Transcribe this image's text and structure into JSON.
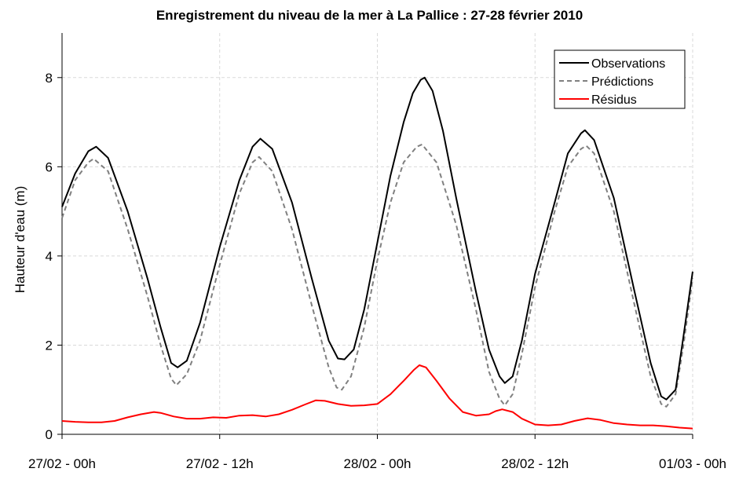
{
  "chart_data": {
    "type": "line",
    "title": "Enregistrement du niveau de la mer à La Pallice : 27-28 février 2010",
    "xlabel": "",
    "ylabel": "Hauteur d'eau (m)",
    "x_unit": "hours since 27/02 00h",
    "xlim": [
      0,
      48
    ],
    "ylim": [
      0,
      9
    ],
    "x_ticks": [
      {
        "value": 0,
        "label": "27/02 - 00h"
      },
      {
        "value": 12,
        "label": "27/02 - 12h"
      },
      {
        "value": 24,
        "label": "28/02 - 00h"
      },
      {
        "value": 36,
        "label": "28/02 - 12h"
      },
      {
        "value": 48,
        "label": "01/03 - 00h"
      }
    ],
    "y_ticks": [
      0,
      2,
      4,
      6,
      8
    ],
    "grid": true,
    "legend_position": "top-right",
    "series": [
      {
        "name": "Observations",
        "color": "#000000",
        "style": "solid",
        "points": [
          [
            0,
            5.1
          ],
          [
            1,
            5.85
          ],
          [
            2,
            6.35
          ],
          [
            2.6,
            6.45
          ],
          [
            3.5,
            6.2
          ],
          [
            5,
            5.0
          ],
          [
            6.5,
            3.5
          ],
          [
            7.5,
            2.4
          ],
          [
            8.3,
            1.6
          ],
          [
            8.8,
            1.5
          ],
          [
            9.5,
            1.65
          ],
          [
            10.5,
            2.5
          ],
          [
            12,
            4.2
          ],
          [
            13.5,
            5.7
          ],
          [
            14.5,
            6.45
          ],
          [
            15.1,
            6.63
          ],
          [
            16,
            6.4
          ],
          [
            17.5,
            5.2
          ],
          [
            19,
            3.5
          ],
          [
            20.3,
            2.1
          ],
          [
            21,
            1.7
          ],
          [
            21.5,
            1.68
          ],
          [
            22.2,
            1.9
          ],
          [
            23,
            2.8
          ],
          [
            24,
            4.3
          ],
          [
            25,
            5.8
          ],
          [
            26,
            7.0
          ],
          [
            26.7,
            7.65
          ],
          [
            27.3,
            7.95
          ],
          [
            27.6,
            8.0
          ],
          [
            28.2,
            7.7
          ],
          [
            29,
            6.8
          ],
          [
            30,
            5.3
          ],
          [
            31.5,
            3.2
          ],
          [
            32.5,
            1.9
          ],
          [
            33.3,
            1.3
          ],
          [
            33.7,
            1.15
          ],
          [
            34.3,
            1.3
          ],
          [
            35,
            2.1
          ],
          [
            36,
            3.6
          ],
          [
            37.5,
            5.2
          ],
          [
            38.5,
            6.3
          ],
          [
            39.5,
            6.75
          ],
          [
            39.8,
            6.82
          ],
          [
            40.5,
            6.6
          ],
          [
            42,
            5.3
          ],
          [
            43.5,
            3.3
          ],
          [
            44.8,
            1.6
          ],
          [
            45.6,
            0.85
          ],
          [
            46,
            0.78
          ],
          [
            46.7,
            1.0
          ],
          [
            47.3,
            2.2
          ],
          [
            48,
            3.65
          ]
        ]
      },
      {
        "name": "Prédictions",
        "color": "#808080",
        "style": "dashed",
        "points": [
          [
            0,
            4.85
          ],
          [
            1,
            5.7
          ],
          [
            2,
            6.1
          ],
          [
            2.4,
            6.18
          ],
          [
            3.5,
            5.9
          ],
          [
            5,
            4.6
          ],
          [
            6.5,
            3.1
          ],
          [
            7.5,
            2.0
          ],
          [
            8.3,
            1.25
          ],
          [
            8.7,
            1.1
          ],
          [
            9.5,
            1.35
          ],
          [
            10.5,
            2.1
          ],
          [
            12,
            3.8
          ],
          [
            13.5,
            5.4
          ],
          [
            14.5,
            6.1
          ],
          [
            15,
            6.22
          ],
          [
            16,
            5.9
          ],
          [
            17.5,
            4.6
          ],
          [
            19,
            2.9
          ],
          [
            20.3,
            1.5
          ],
          [
            20.9,
            1.05
          ],
          [
            21.3,
            1.0
          ],
          [
            22,
            1.3
          ],
          [
            23,
            2.4
          ],
          [
            24,
            3.9
          ],
          [
            25,
            5.2
          ],
          [
            26,
            6.1
          ],
          [
            27,
            6.45
          ],
          [
            27.4,
            6.5
          ],
          [
            28.5,
            6.1
          ],
          [
            30,
            4.7
          ],
          [
            31.5,
            2.8
          ],
          [
            32.5,
            1.4
          ],
          [
            33.3,
            0.8
          ],
          [
            33.7,
            0.65
          ],
          [
            34.3,
            0.9
          ],
          [
            35,
            1.8
          ],
          [
            36,
            3.3
          ],
          [
            37.5,
            5.0
          ],
          [
            38.5,
            6.0
          ],
          [
            39.5,
            6.4
          ],
          [
            39.9,
            6.47
          ],
          [
            40.5,
            6.3
          ],
          [
            42,
            5.0
          ],
          [
            43.5,
            3.0
          ],
          [
            44.8,
            1.3
          ],
          [
            45.6,
            0.68
          ],
          [
            46,
            0.62
          ],
          [
            46.7,
            0.9
          ],
          [
            47.3,
            2.0
          ],
          [
            48,
            3.5
          ]
        ]
      },
      {
        "name": "Résidus",
        "color": "#ff0000",
        "style": "solid",
        "points": [
          [
            0,
            0.3
          ],
          [
            1,
            0.28
          ],
          [
            2,
            0.27
          ],
          [
            3,
            0.27
          ],
          [
            4,
            0.3
          ],
          [
            5,
            0.38
          ],
          [
            6,
            0.45
          ],
          [
            7,
            0.5
          ],
          [
            7.5,
            0.48
          ],
          [
            8.5,
            0.4
          ],
          [
            9.5,
            0.35
          ],
          [
            10.5,
            0.35
          ],
          [
            11.5,
            0.38
          ],
          [
            12.5,
            0.37
          ],
          [
            13.5,
            0.42
          ],
          [
            14.5,
            0.43
          ],
          [
            15.5,
            0.4
          ],
          [
            16.5,
            0.45
          ],
          [
            17.5,
            0.55
          ],
          [
            18.5,
            0.67
          ],
          [
            19.3,
            0.76
          ],
          [
            20,
            0.75
          ],
          [
            21,
            0.68
          ],
          [
            22,
            0.64
          ],
          [
            23,
            0.65
          ],
          [
            24,
            0.68
          ],
          [
            25,
            0.9
          ],
          [
            26,
            1.2
          ],
          [
            26.8,
            1.45
          ],
          [
            27.2,
            1.55
          ],
          [
            27.7,
            1.5
          ],
          [
            28.5,
            1.2
          ],
          [
            29.5,
            0.8
          ],
          [
            30.5,
            0.5
          ],
          [
            31.5,
            0.42
          ],
          [
            32.5,
            0.45
          ],
          [
            33,
            0.52
          ],
          [
            33.5,
            0.56
          ],
          [
            34.3,
            0.5
          ],
          [
            35,
            0.35
          ],
          [
            36,
            0.22
          ],
          [
            37,
            0.2
          ],
          [
            38,
            0.22
          ],
          [
            39,
            0.3
          ],
          [
            40,
            0.36
          ],
          [
            41,
            0.32
          ],
          [
            42,
            0.25
          ],
          [
            43,
            0.22
          ],
          [
            44,
            0.2
          ],
          [
            45,
            0.2
          ],
          [
            46,
            0.18
          ],
          [
            47,
            0.15
          ],
          [
            48,
            0.13
          ]
        ]
      }
    ]
  }
}
